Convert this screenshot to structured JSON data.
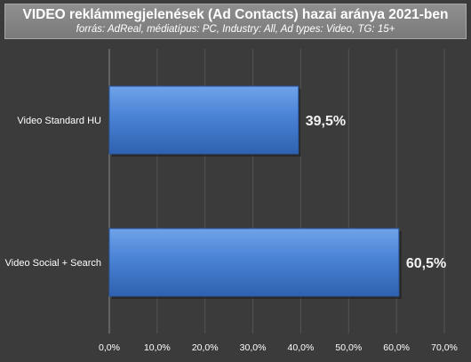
{
  "chart_data": {
    "type": "bar",
    "orientation": "horizontal",
    "title": "VIDEO reklámmegjelenések (Ad Contacts) hazai aránya 2021-ben",
    "subtitle": "forrás: AdReal, médiatípus: PC, Industry: All, Ad types: Video, TG: 15+",
    "categories": [
      "Video Standard HU",
      "Video Social + Search"
    ],
    "values": [
      39.5,
      60.5
    ],
    "data_labels": [
      "39,5%",
      "60,5%"
    ],
    "xlim": [
      0,
      70
    ],
    "x_ticks": [
      "0,0%",
      "10,0%",
      "20,0%",
      "30,0%",
      "40,0%",
      "50,0%",
      "60,0%",
      "70,0%"
    ],
    "grid": true,
    "legend": "none",
    "colors": {
      "background": "#3b3b3b",
      "bar": "#4a82d4",
      "bar_light": "#6fa3ea",
      "bar_dark": "#2f62b0",
      "grid": "#555555",
      "text": "#ffffff"
    }
  }
}
